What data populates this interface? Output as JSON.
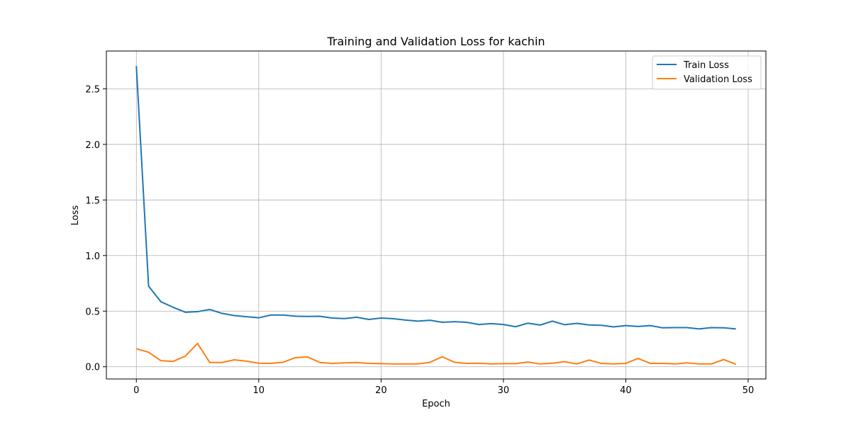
{
  "chart_data": {
    "type": "line",
    "title": "Training and Validation Loss for kachin",
    "xlabel": "Epoch",
    "ylabel": "Loss",
    "xlim": [
      -2.45,
      51.45
    ],
    "ylim": [
      -0.11,
      2.84
    ],
    "xticks": [
      0,
      10,
      20,
      30,
      40,
      50
    ],
    "yticks": [
      0.0,
      0.5,
      1.0,
      1.5,
      2.0,
      2.5
    ],
    "xtick_labels": [
      "0",
      "10",
      "20",
      "30",
      "40",
      "50"
    ],
    "ytick_labels": [
      "0.0",
      "0.5",
      "1.0",
      "1.5",
      "2.0",
      "2.5"
    ],
    "grid": true,
    "legend": "top-right",
    "x": [
      0,
      1,
      2,
      3,
      4,
      5,
      6,
      7,
      8,
      9,
      10,
      11,
      12,
      13,
      14,
      15,
      16,
      17,
      18,
      19,
      20,
      21,
      22,
      23,
      24,
      25,
      26,
      27,
      28,
      29,
      30,
      31,
      32,
      33,
      34,
      35,
      36,
      37,
      38,
      39,
      40,
      41,
      42,
      43,
      44,
      45,
      46,
      47,
      48,
      49
    ],
    "series": [
      {
        "name": "Train Loss",
        "color": "#1f77b4",
        "values": [
          2.705,
          0.725,
          0.585,
          0.535,
          0.49,
          0.495,
          0.515,
          0.48,
          0.46,
          0.45,
          0.44,
          0.465,
          0.465,
          0.455,
          0.452,
          0.454,
          0.438,
          0.433,
          0.445,
          0.425,
          0.438,
          0.432,
          0.42,
          0.41,
          0.418,
          0.4,
          0.405,
          0.4,
          0.38,
          0.388,
          0.38,
          0.36,
          0.392,
          0.375,
          0.41,
          0.378,
          0.39,
          0.376,
          0.373,
          0.358,
          0.37,
          0.362,
          0.37,
          0.35,
          0.352,
          0.352,
          0.34,
          0.352,
          0.35,
          0.34
        ]
      },
      {
        "name": "Validation Loss",
        "color": "#ff7f0e",
        "values": [
          0.162,
          0.13,
          0.055,
          0.048,
          0.095,
          0.21,
          0.038,
          0.038,
          0.062,
          0.05,
          0.032,
          0.03,
          0.04,
          0.082,
          0.088,
          0.038,
          0.03,
          0.035,
          0.038,
          0.03,
          0.028,
          0.025,
          0.025,
          0.025,
          0.04,
          0.09,
          0.04,
          0.03,
          0.032,
          0.025,
          0.028,
          0.028,
          0.042,
          0.025,
          0.032,
          0.045,
          0.025,
          0.06,
          0.03,
          0.025,
          0.03,
          0.075,
          0.03,
          0.03,
          0.025,
          0.035,
          0.025,
          0.025,
          0.065,
          0.022
        ]
      }
    ]
  }
}
